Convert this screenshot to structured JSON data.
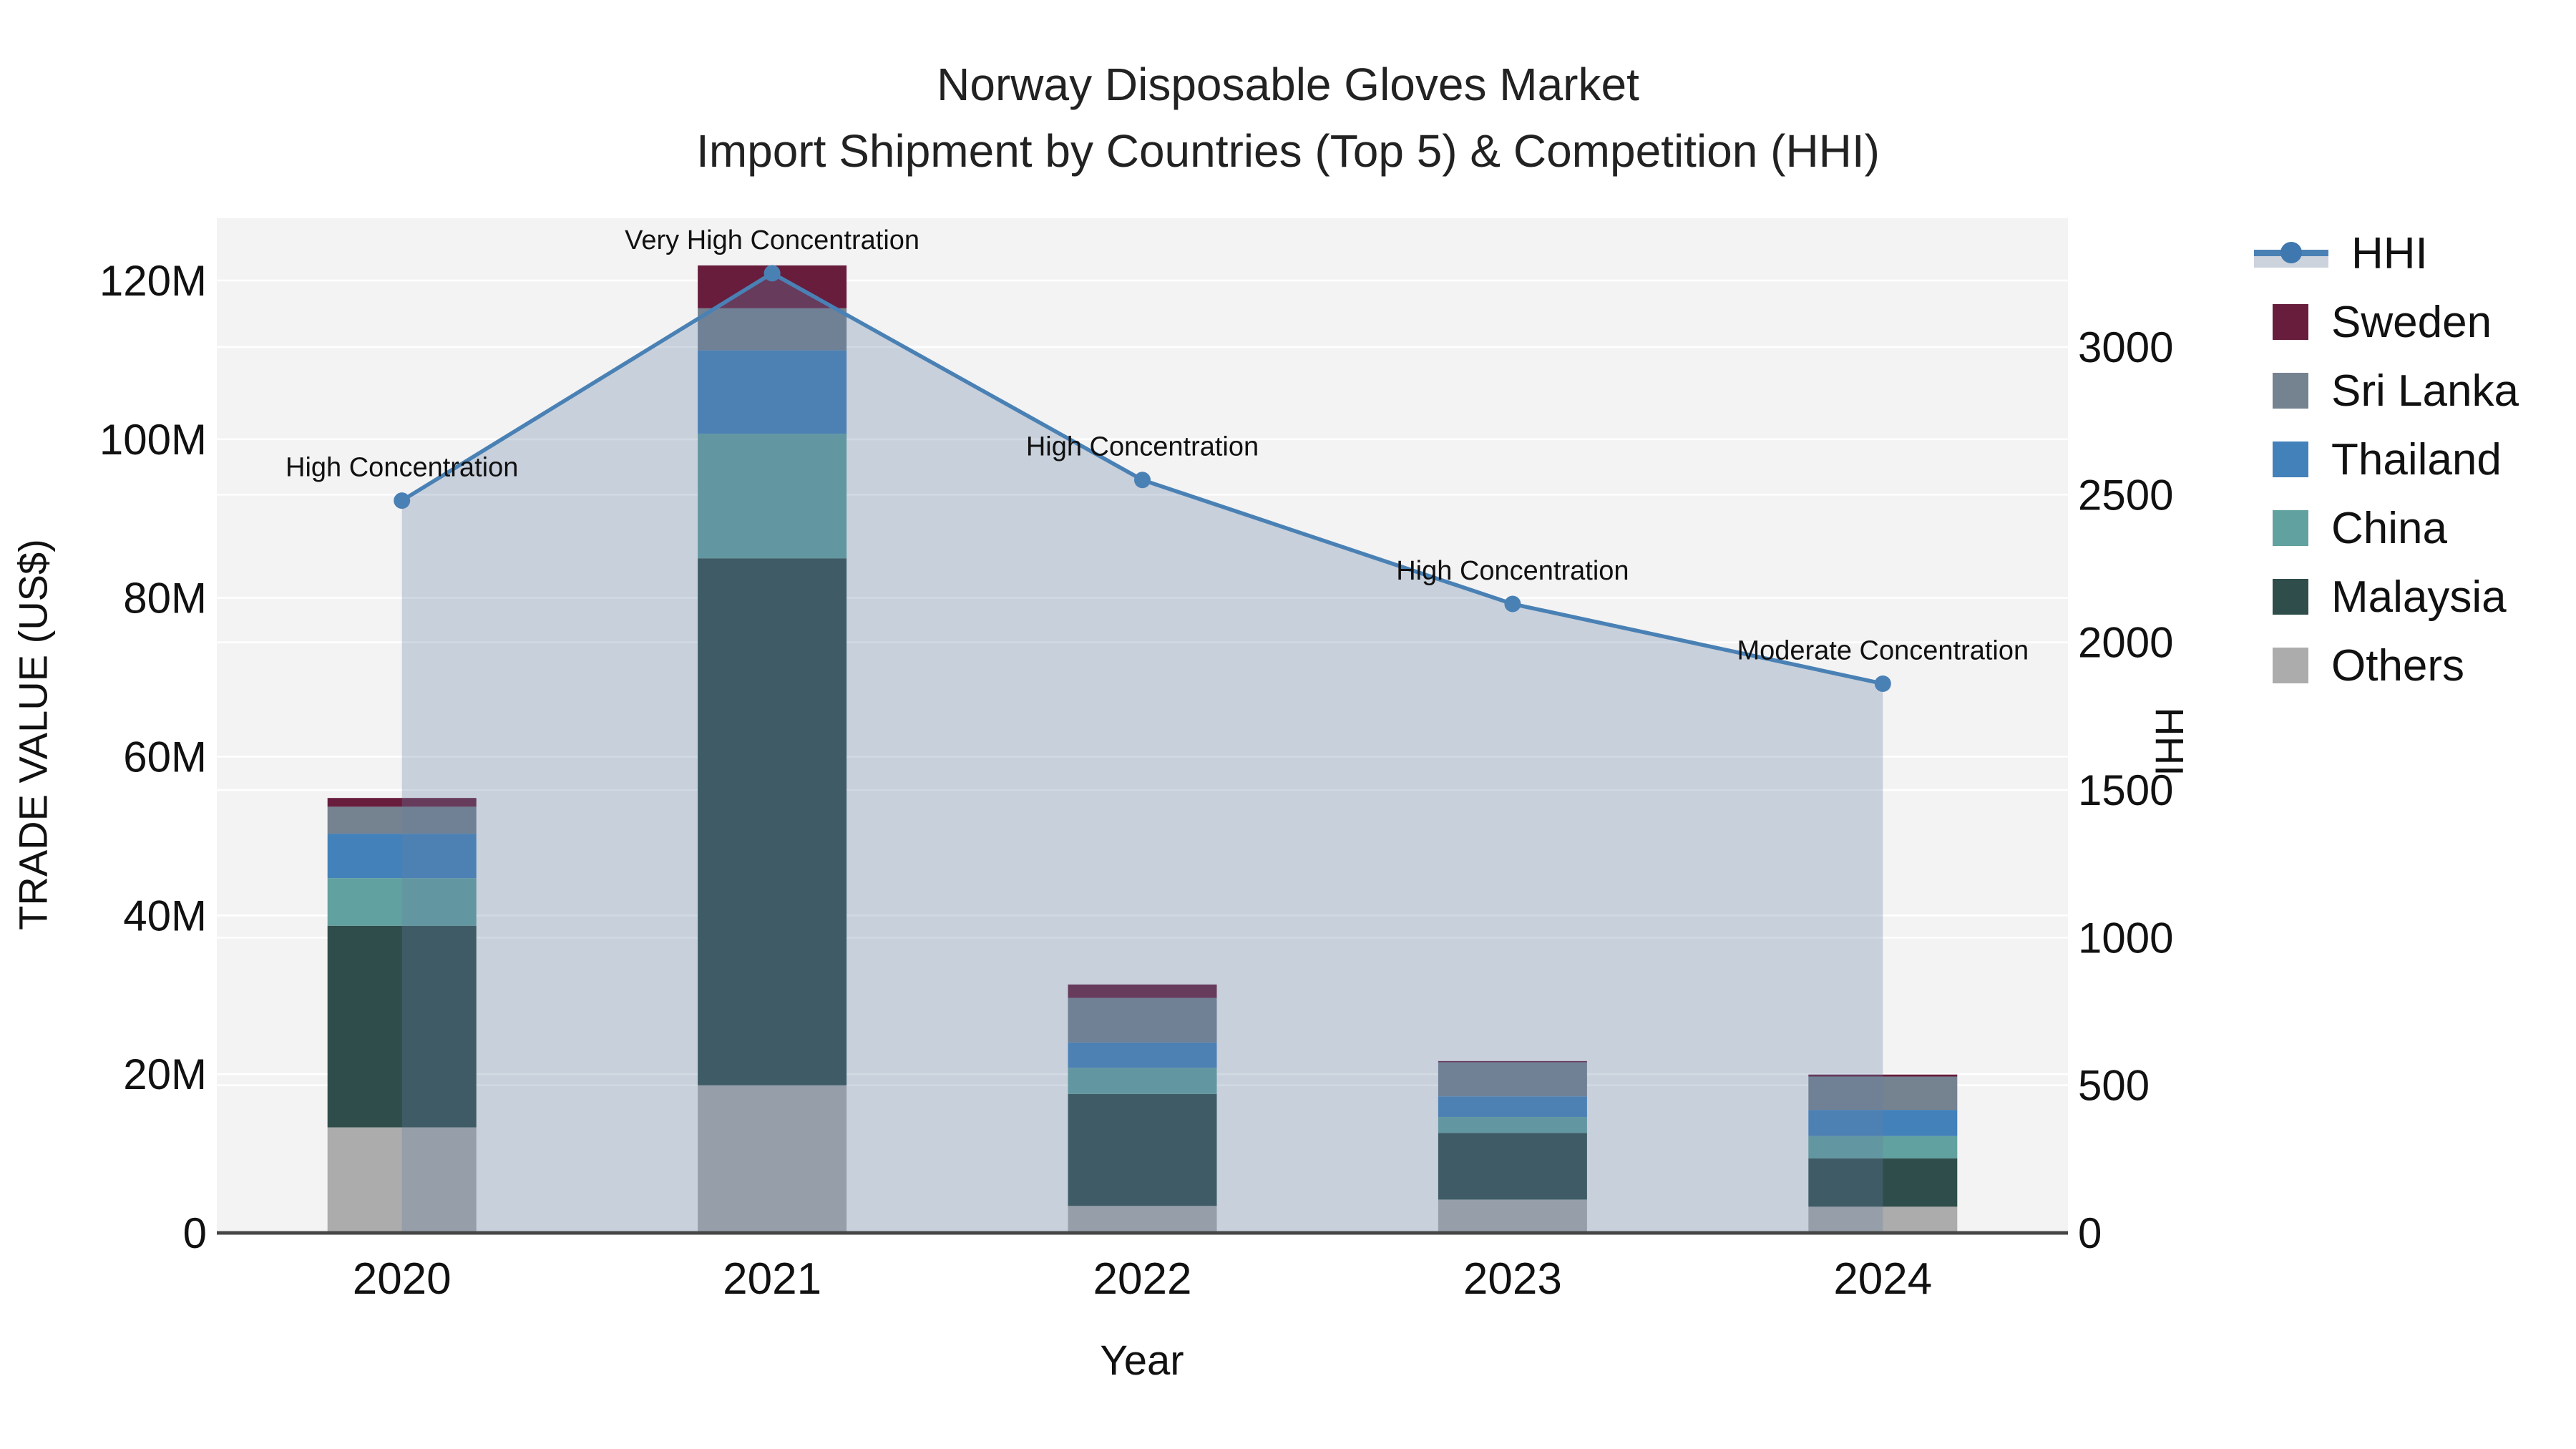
{
  "title": {
    "line1": "Norway Disposable Gloves Market",
    "line2": "Import Shipment by Countries (Top 5) & Competition (HHI)"
  },
  "axes": {
    "left": {
      "title": "TRADE VALUE (US$)",
      "tick_labels": [
        "0",
        "20M",
        "40M",
        "60M",
        "80M",
        "100M",
        "120M"
      ],
      "tick_values": [
        0,
        20,
        40,
        60,
        80,
        100,
        120
      ]
    },
    "right": {
      "title": "HHI",
      "tick_labels": [
        "0",
        "500",
        "1000",
        "1500",
        "2000",
        "2500",
        "3000"
      ],
      "tick_values": [
        0,
        500,
        1000,
        1500,
        2000,
        2500,
        3000
      ]
    },
    "x": {
      "title": "Year"
    }
  },
  "legend": {
    "items": [
      {
        "label": "HHI",
        "color": "#4a81b5",
        "type": "line"
      },
      {
        "label": "Sweden",
        "color": "#681d3d",
        "type": "swatch"
      },
      {
        "label": "Sri Lanka",
        "color": "#758290",
        "type": "swatch"
      },
      {
        "label": "Thailand",
        "color": "#4381ba",
        "type": "swatch"
      },
      {
        "label": "China",
        "color": "#61a19f",
        "type": "swatch"
      },
      {
        "label": "Malaysia",
        "color": "#2f4d4b",
        "type": "swatch"
      },
      {
        "label": "Others",
        "color": "#abacab",
        "type": "swatch"
      }
    ]
  },
  "chart_data": {
    "type": "bar",
    "subtype": "stacked-bars-with-line-overlay",
    "title": "Norway Disposable Gloves Market — Import Shipment by Countries (Top 5) & Competition (HHI)",
    "xlabel": "Year",
    "ylabel_left": "TRADE VALUE (US$)",
    "ylabel_right": "HHI",
    "categories": [
      "2020",
      "2021",
      "2022",
      "2023",
      "2024"
    ],
    "unit": "M US$",
    "series": [
      {
        "name": "Others",
        "color": "#abacab",
        "values": [
          13.3,
          18.6,
          3.4,
          4.2,
          3.3
        ]
      },
      {
        "name": "Malaysia",
        "color": "#2f4d4b",
        "values": [
          25.4,
          66.4,
          14.1,
          8.4,
          6.1
        ]
      },
      {
        "name": "China",
        "color": "#61a19f",
        "values": [
          6.0,
          15.7,
          3.3,
          2.0,
          2.8
        ]
      },
      {
        "name": "Thailand",
        "color": "#4381ba",
        "values": [
          5.6,
          10.5,
          3.2,
          2.6,
          3.3
        ]
      },
      {
        "name": "Sri Lanka",
        "color": "#758290",
        "values": [
          3.4,
          5.3,
          5.6,
          4.3,
          4.2
        ]
      },
      {
        "name": "Sweden",
        "color": "#681d3d",
        "values": [
          1.1,
          5.4,
          1.7,
          0.15,
          0.25
        ]
      }
    ],
    "bar_totals": [
      54.8,
      121.9,
      31.3,
      21.65,
      19.95
    ],
    "hhi": {
      "name": "HHI",
      "color": "#4a81b5",
      "fill_color": "rgba(104,130,165,0.30)",
      "values": [
        2480,
        3250,
        2550,
        2130,
        1860
      ],
      "annotations": [
        "High Concentration",
        "Very High Concentration",
        "High Concentration",
        "High Concentration",
        "Moderate Concentration"
      ]
    },
    "ylim_left": [
      0,
      120
    ],
    "ylim_right": [
      0,
      3000
    ],
    "grid": true,
    "legend_position": "right"
  }
}
